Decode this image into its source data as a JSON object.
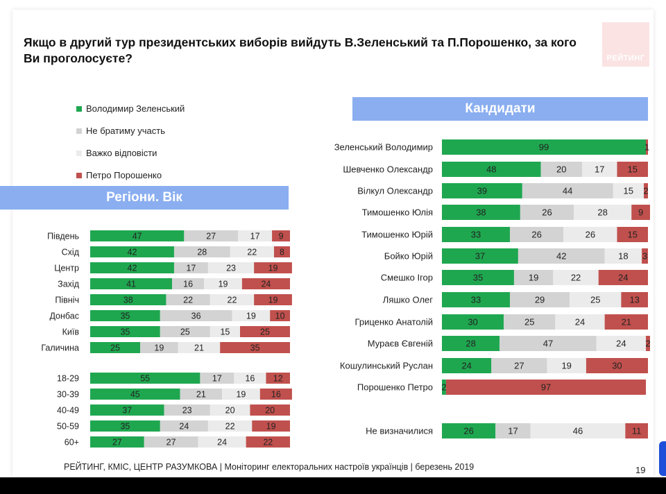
{
  "title": "Якщо в другий тур президентських виборів вийдуть В.Зеленський та П.Порошенко, за кого Ви проголосуєте?",
  "logo": "РЕЙТИНГ",
  "legend": [
    {
      "label": "Володимир Зеленський",
      "color": "#1fa750"
    },
    {
      "label": "Не братиму участь",
      "color": "#d3d3d3"
    },
    {
      "label": "Важко відповісти",
      "color": "#ebebeb"
    },
    {
      "label": "Петро Порошенко",
      "color": "#c0504d"
    }
  ],
  "colors": {
    "zelensky": "#1fa750",
    "not_vote": "#d3d3d3",
    "hard": "#ebebeb",
    "poroshenko": "#c0504d",
    "header": "#8aaef0"
  },
  "left_header": "Регіони. Вік",
  "right_header": "Кандидати",
  "footer": "РЕЙТИНГ, КМІС, ЦЕНТР РАЗУМКОВА  | Моніторинг електоральних настроїв українців | березень 2019",
  "page_number": "19",
  "chart_data": [
    {
      "type": "bar",
      "stacked": true,
      "orientation": "horizontal",
      "title": "Регіони. Вік",
      "categories": [
        "Південь",
        "Схід",
        "Центр",
        "Захід",
        "Північ",
        "Донбас",
        "Київ",
        "Галичина",
        "18-29",
        "30-39",
        "40-49",
        "50-59",
        "60+"
      ],
      "series": [
        {
          "name": "Володимир Зеленський",
          "values": [
            47,
            42,
            42,
            41,
            38,
            35,
            35,
            25,
            55,
            45,
            37,
            35,
            27
          ]
        },
        {
          "name": "Не братиму участь",
          "values": [
            27,
            28,
            17,
            16,
            22,
            36,
            25,
            19,
            17,
            21,
            23,
            24,
            27
          ]
        },
        {
          "name": "Важко відповісти",
          "values": [
            17,
            22,
            23,
            19,
            22,
            19,
            15,
            21,
            16,
            19,
            20,
            22,
            24
          ]
        },
        {
          "name": "Петро Порошенко",
          "values": [
            9,
            8,
            19,
            24,
            19,
            10,
            25,
            35,
            12,
            16,
            20,
            19,
            22
          ]
        }
      ]
    },
    {
      "type": "bar",
      "stacked": true,
      "orientation": "horizontal",
      "title": "Кандидати",
      "categories": [
        "Зеленський Володимир",
        "Шевченко Олександр",
        "Вілкул Олександр",
        "Тимошенко Юлія",
        "Тимошенко Юрій",
        "Бойко Юрій",
        "Смешко Ігор",
        "Ляшко Олег",
        "Гриценко Анатолій",
        "Мураєв Євгеній",
        "Кошулинський Руслан",
        "Порошенко Петро",
        "Не визначилися"
      ],
      "series": [
        {
          "name": "Володимир Зеленський",
          "values": [
            99,
            48,
            39,
            38,
            33,
            37,
            35,
            33,
            30,
            28,
            24,
            2,
            26
          ]
        },
        {
          "name": "Не братиму участь",
          "values": [
            0,
            20,
            44,
            26,
            26,
            42,
            19,
            29,
            25,
            47,
            27,
            0,
            17
          ]
        },
        {
          "name": "Важко відповісти",
          "values": [
            0,
            17,
            15,
            28,
            26,
            18,
            22,
            25,
            24,
            24,
            19,
            0,
            46
          ]
        },
        {
          "name": "Петро Порошенко",
          "values": [
            1,
            15,
            2,
            9,
            15,
            3,
            24,
            13,
            21,
            2,
            30,
            97,
            11
          ]
        }
      ]
    }
  ]
}
